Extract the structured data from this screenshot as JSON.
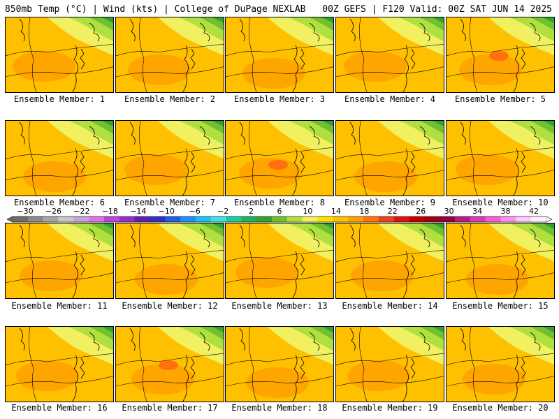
{
  "header": {
    "left": "850mb Temp (°C) | Wind (kts) | College of DuPage NEXLAB",
    "right": "00Z GEFS | F120 Valid: 00Z SAT JUN 14 2025"
  },
  "member_prefix": "Ensemble Member: ",
  "members": [
    "1",
    "2",
    "3",
    "4",
    "5",
    "6",
    "7",
    "8",
    "9",
    "10",
    "11",
    "12",
    "13",
    "14",
    "15",
    "16",
    "17",
    "18",
    "19",
    "20"
  ],
  "colorbar": {
    "labels": [
      "−30",
      "−26",
      "−22",
      "−18",
      "−14",
      "−10",
      "−6",
      "−2",
      "2",
      "6",
      "10",
      "14",
      "18",
      "22",
      "26",
      "30",
      "34",
      "38",
      "42"
    ],
    "colors": [
      "#6e6e6e",
      "#8a8a8a",
      "#a6a6a6",
      "#c8c8c8",
      "#c8a0e0",
      "#e070e0",
      "#c040e0",
      "#9030c8",
      "#6020b0",
      "#3030c0",
      "#2060e0",
      "#2090f0",
      "#20c0f0",
      "#40e0e0",
      "#20c8a0",
      "#20b060",
      "#30a030",
      "#70c030",
      "#b0e040",
      "#f0f060",
      "#ffe000",
      "#ffc000",
      "#ffa000",
      "#ff7010",
      "#f04020",
      "#e01010",
      "#c00000",
      "#a00010",
      "#900040",
      "#b02080",
      "#d040b0",
      "#f060d0",
      "#ff90f0",
      "#ffc8ff",
      "#fff0ff"
    ]
  }
}
